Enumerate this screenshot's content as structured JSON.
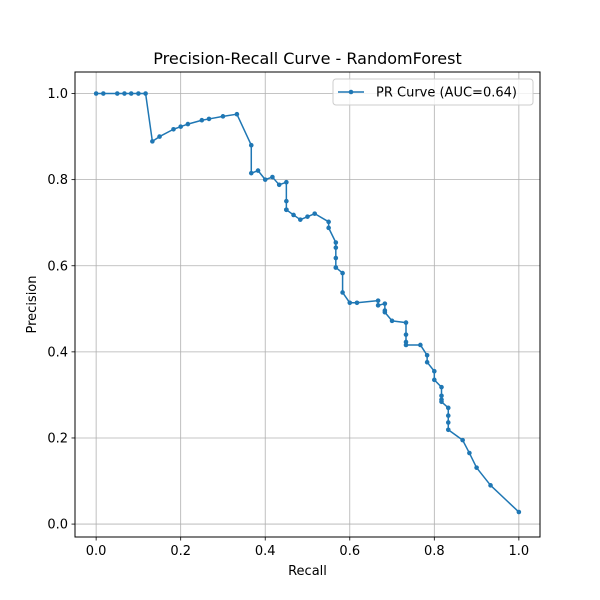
{
  "chart_data": {
    "type": "line",
    "title": "Precision-Recall Curve - RandomForest",
    "xlabel": "Recall",
    "ylabel": "Precision",
    "xlim": [
      -0.05,
      1.05
    ],
    "ylim": [
      -0.03,
      1.05
    ],
    "xticks": [
      "0.0",
      "0.2",
      "0.4",
      "0.6",
      "0.8",
      "1.0"
    ],
    "yticks": [
      "0.0",
      "0.2",
      "0.4",
      "0.6",
      "0.8",
      "1.0"
    ],
    "grid": true,
    "legend_position": "top-right",
    "color": "#1f77b4",
    "marker": "point",
    "series": [
      {
        "name": "PR Curve (AUC=0.64)",
        "x": [
          0.0,
          0.017,
          0.05,
          0.067,
          0.083,
          0.1,
          0.117,
          0.133,
          0.15,
          0.183,
          0.2,
          0.217,
          0.25,
          0.267,
          0.3,
          0.333,
          0.367,
          0.367,
          0.383,
          0.4,
          0.417,
          0.433,
          0.45,
          0.45,
          0.45,
          0.45,
          0.467,
          0.483,
          0.5,
          0.517,
          0.55,
          0.55,
          0.567,
          0.567,
          0.567,
          0.567,
          0.567,
          0.583,
          0.583,
          0.6,
          0.617,
          0.667,
          0.667,
          0.683,
          0.683,
          0.683,
          0.7,
          0.733,
          0.733,
          0.733,
          0.733,
          0.767,
          0.783,
          0.783,
          0.8,
          0.8,
          0.817,
          0.817,
          0.817,
          0.817,
          0.833,
          0.833,
          0.833,
          0.833,
          0.867,
          0.883,
          0.9,
          0.933,
          1.0
        ],
        "y": [
          1.0,
          1.0,
          1.0,
          1.0,
          1.0,
          1.0,
          1.0,
          0.889,
          0.9,
          0.917,
          0.923,
          0.929,
          0.938,
          0.941,
          0.947,
          0.952,
          0.88,
          0.815,
          0.821,
          0.8,
          0.806,
          0.788,
          0.794,
          0.75,
          0.73,
          0.73,
          0.718,
          0.707,
          0.714,
          0.721,
          0.702,
          0.688,
          0.654,
          0.642,
          0.618,
          0.596,
          0.596,
          0.583,
          0.538,
          0.514,
          0.514,
          0.519,
          0.508,
          0.512,
          0.496,
          0.492,
          0.472,
          0.468,
          0.44,
          0.423,
          0.416,
          0.416,
          0.392,
          0.376,
          0.355,
          0.335,
          0.318,
          0.298,
          0.289,
          0.284,
          0.27,
          0.252,
          0.236,
          0.219,
          0.195,
          0.165,
          0.131,
          0.09,
          0.028
        ]
      }
    ]
  }
}
